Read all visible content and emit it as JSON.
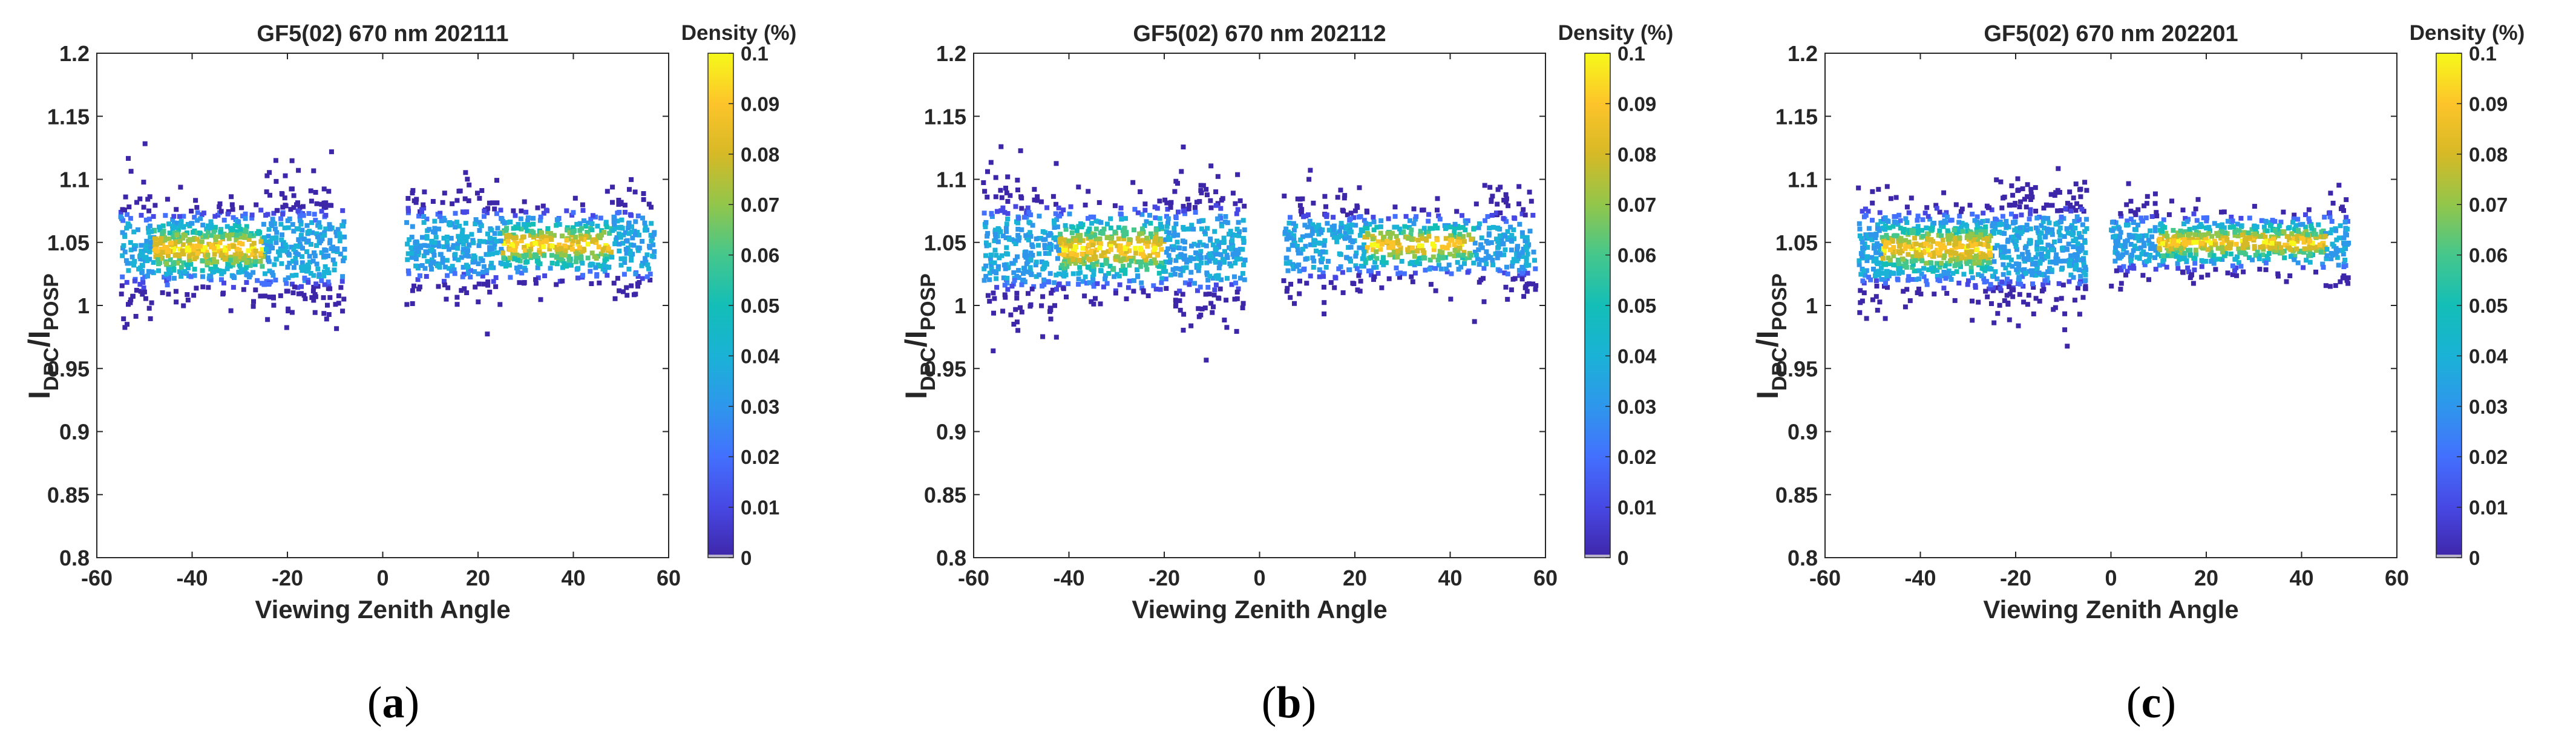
{
  "chart_data": [
    {
      "type": "scatter",
      "subtype": "density-scatter",
      "title": "GF5(02) 670 nm 202111",
      "xlabel": "Viewing Zenith Angle",
      "ylabel_main": "I",
      "ylabel_sub1": "DPC",
      "ylabel_sep": "/I",
      "ylabel_sub2": "POSP",
      "xlim": [
        -60,
        60
      ],
      "ylim": [
        0.8,
        1.2
      ],
      "xticks": [
        "-60",
        "-40",
        "-20",
        "0",
        "20",
        "40",
        "60"
      ],
      "yticks": [
        "0.8",
        "0.85",
        "0.9",
        "0.95",
        "1",
        "1.05",
        "1.1",
        "1.15",
        "1.2"
      ],
      "colorbar": {
        "label": "Density (%)",
        "range": [
          0,
          0.1
        ],
        "ticks": [
          "0",
          "0.01",
          "0.02",
          "0.03",
          "0.04",
          "0.05",
          "0.06",
          "0.07",
          "0.08",
          "0.09",
          "0.1"
        ]
      },
      "clusters": [
        {
          "x_range": [
            -55,
            -8
          ],
          "center": 1.045,
          "spread": 0.022,
          "peak_x": [
            -48,
            -25
          ],
          "n": 900
        },
        {
          "x_range": [
            5,
            57
          ],
          "center": 1.048,
          "spread": 0.02,
          "peak_x": [
            25,
            48
          ],
          "n": 750
        }
      ],
      "caption": "a"
    },
    {
      "type": "scatter",
      "subtype": "density-scatter",
      "title": "GF5(02) 670 nm 202112",
      "xlabel": "Viewing Zenith Angle",
      "ylabel_main": "I",
      "ylabel_sub1": "DPC",
      "ylabel_sep": "/I",
      "ylabel_sub2": "POSP",
      "xlim": [
        -60,
        60
      ],
      "ylim": [
        0.8,
        1.2
      ],
      "xticks": [
        "-60",
        "-40",
        "-20",
        "0",
        "20",
        "40",
        "60"
      ],
      "yticks": [
        "0.8",
        "0.85",
        "0.9",
        "0.95",
        "1",
        "1.05",
        "1.1",
        "1.15",
        "1.2"
      ],
      "colorbar": {
        "label": "Density (%)",
        "range": [
          0,
          0.1
        ],
        "ticks": [
          "0",
          "0.01",
          "0.02",
          "0.03",
          "0.04",
          "0.05",
          "0.06",
          "0.07",
          "0.08",
          "0.09",
          "0.1"
        ]
      },
      "clusters": [
        {
          "x_range": [
            -58,
            -3
          ],
          "center": 1.045,
          "spread": 0.024,
          "peak_x": [
            -42,
            -20
          ],
          "n": 950
        },
        {
          "x_range": [
            5,
            58
          ],
          "center": 1.048,
          "spread": 0.018,
          "peak_x": [
            22,
            45
          ],
          "n": 650
        }
      ],
      "caption": "b"
    },
    {
      "type": "scatter",
      "subtype": "density-scatter",
      "title": "GF5(02) 670 nm 202201",
      "xlabel": "Viewing Zenith Angle",
      "ylabel_main": "I",
      "ylabel_sub1": "DPC",
      "ylabel_sep": "/I",
      "ylabel_sub2": "POSP",
      "xlim": [
        -60,
        60
      ],
      "ylim": [
        0.8,
        1.2
      ],
      "xticks": [
        "-60",
        "-40",
        "-20",
        "0",
        "20",
        "40",
        "60"
      ],
      "yticks": [
        "0.8",
        "0.85",
        "0.9",
        "0.95",
        "1",
        "1.05",
        "1.1",
        "1.15",
        "1.2"
      ],
      "colorbar": {
        "label": "Density (%)",
        "range": [
          0,
          0.1
        ],
        "ticks": [
          "0",
          "0.01",
          "0.02",
          "0.03",
          "0.04",
          "0.05",
          "0.06",
          "0.07",
          "0.08",
          "0.09",
          "0.1"
        ]
      },
      "clusters": [
        {
          "x_range": [
            -53,
            -5
          ],
          "center": 1.045,
          "spread": 0.022,
          "peak_x": [
            -48,
            -25
          ],
          "n": 1000
        },
        {
          "x_range": [
            0,
            50
          ],
          "center": 1.05,
          "spread": 0.016,
          "peak_x": [
            10,
            45
          ],
          "n": 700
        }
      ],
      "caption": "c"
    }
  ],
  "colors": {
    "colormap": [
      "#3e26a8",
      "#4748e4",
      "#4370fe",
      "#2e97ec",
      "#1ab2d6",
      "#13beb7",
      "#45c78c",
      "#92c64b",
      "#d6b926",
      "#fdc42a",
      "#f6f91a"
    ],
    "axis": "#262626",
    "colorbar_base": "#b8b2cc"
  }
}
